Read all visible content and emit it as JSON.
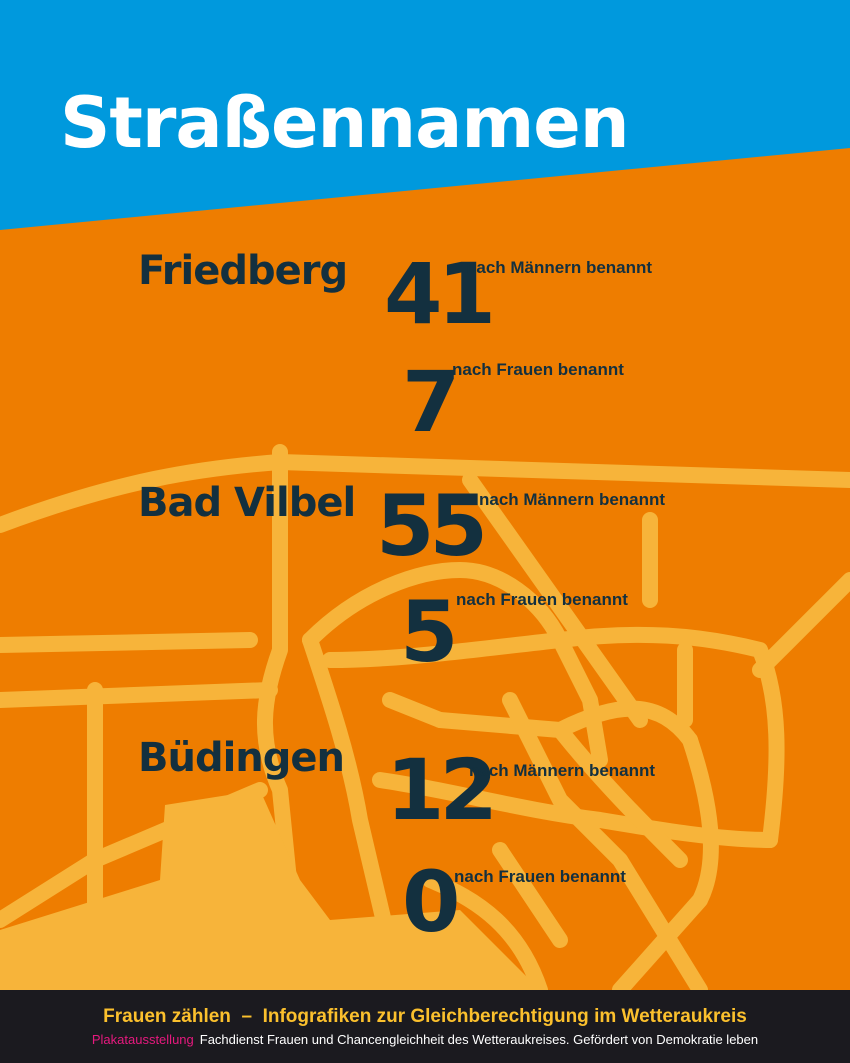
{
  "title": "Straßennamen",
  "colors": {
    "header_blue": "#0099dd",
    "background_orange": "#ee7d00",
    "roads": "#f7b43a",
    "text_dark": "#13303f",
    "footer_bg": "#1b1a1f",
    "footer_yellow": "#fbc02d",
    "footer_pink": "#e6197e"
  },
  "cities": [
    {
      "name": "Friedberg",
      "men": "41",
      "men_label": "nach Männern benannt",
      "women": "7",
      "women_label": "nach Frauen benannt"
    },
    {
      "name": "Bad Vilbel",
      "men": "55",
      "men_label": "nach Männern benannt",
      "women": "5",
      "women_label": "nach Frauen benannt"
    },
    {
      "name": "Büdingen",
      "men": "12",
      "men_label": "nach Männern benannt",
      "women": "0",
      "women_label": "nach Frauen benannt"
    }
  ],
  "footer": {
    "headline": "Frauen zählen  –  Infografiken zur Gleichberechtigung im Wetteraukreis",
    "tag": "Plakatausstellung",
    "credits": "Fachdienst Frauen und Chancengleichheit des Wetteraukreises. Gefördert von Demokratie leben"
  }
}
